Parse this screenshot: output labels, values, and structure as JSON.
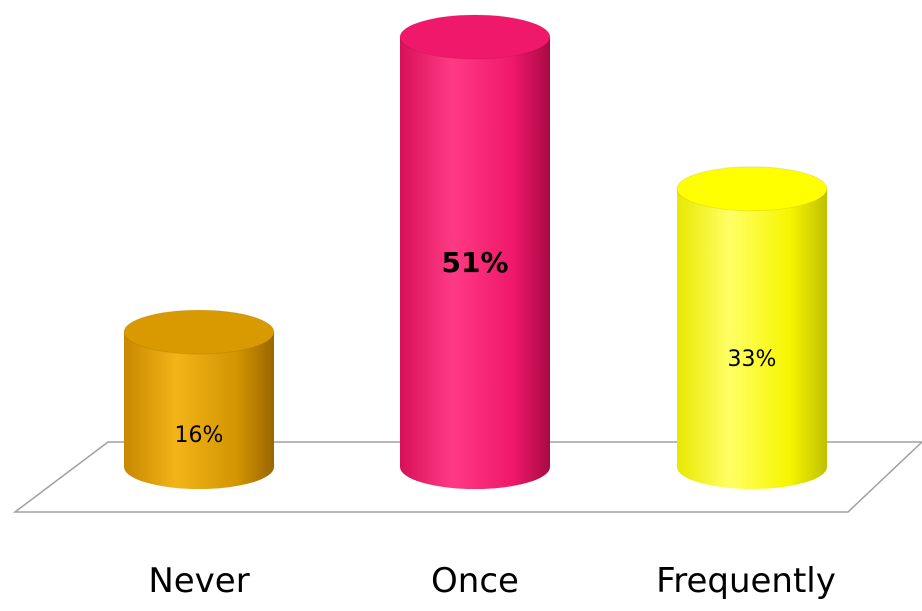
{
  "chart_data": {
    "type": "bar",
    "style": "3d-cylinder",
    "categories": [
      "Never",
      "Once",
      "Frequently"
    ],
    "values": [
      16,
      51,
      33
    ],
    "unit": "%",
    "data_labels": [
      "16%",
      "51%",
      "33%"
    ],
    "colors": [
      "#d89a00",
      "#f0186a",
      "#ffff00"
    ],
    "ylim": [
      0,
      51
    ],
    "grid": false,
    "legend": "none"
  }
}
